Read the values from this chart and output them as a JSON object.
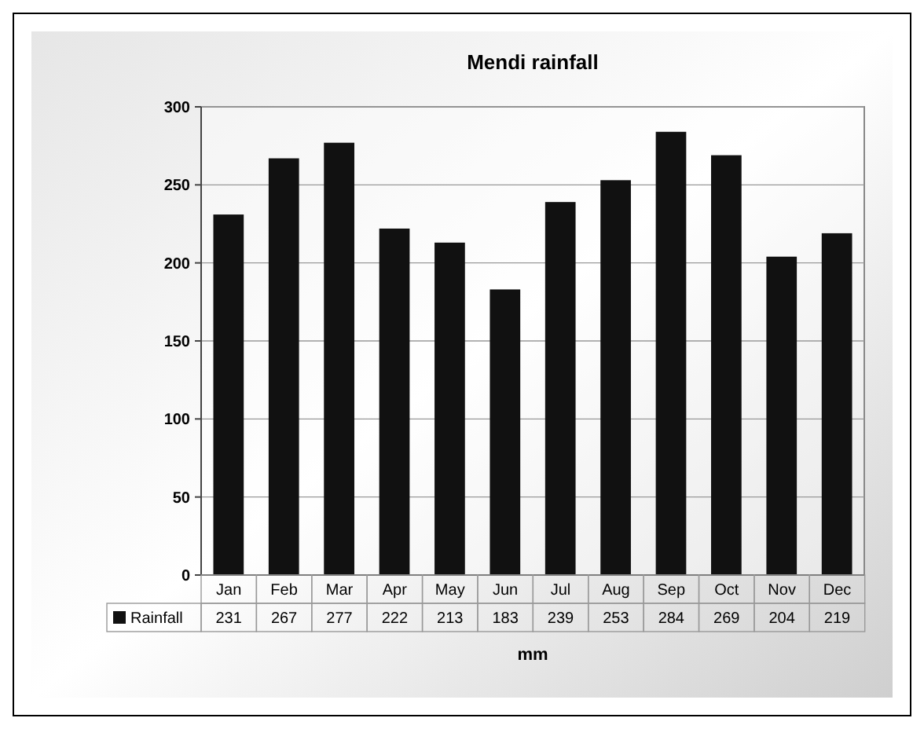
{
  "chart_data": {
    "type": "bar",
    "title": "Mendi rainfall",
    "xlabel": "mm",
    "categories": [
      "Jan",
      "Feb",
      "Mar",
      "Apr",
      "May",
      "Jun",
      "Jul",
      "Aug",
      "Sep",
      "Oct",
      "Nov",
      "Dec"
    ],
    "series": [
      {
        "name": "Rainfall",
        "color": "#111111",
        "values": [
          231,
          267,
          277,
          222,
          213,
          183,
          239,
          253,
          284,
          269,
          204,
          219
        ]
      }
    ],
    "ylim": [
      0,
      300
    ],
    "yticks": [
      0,
      50,
      100,
      150,
      200,
      250,
      300
    ],
    "grid": "y",
    "legend": "bottom",
    "data_labels": true
  }
}
